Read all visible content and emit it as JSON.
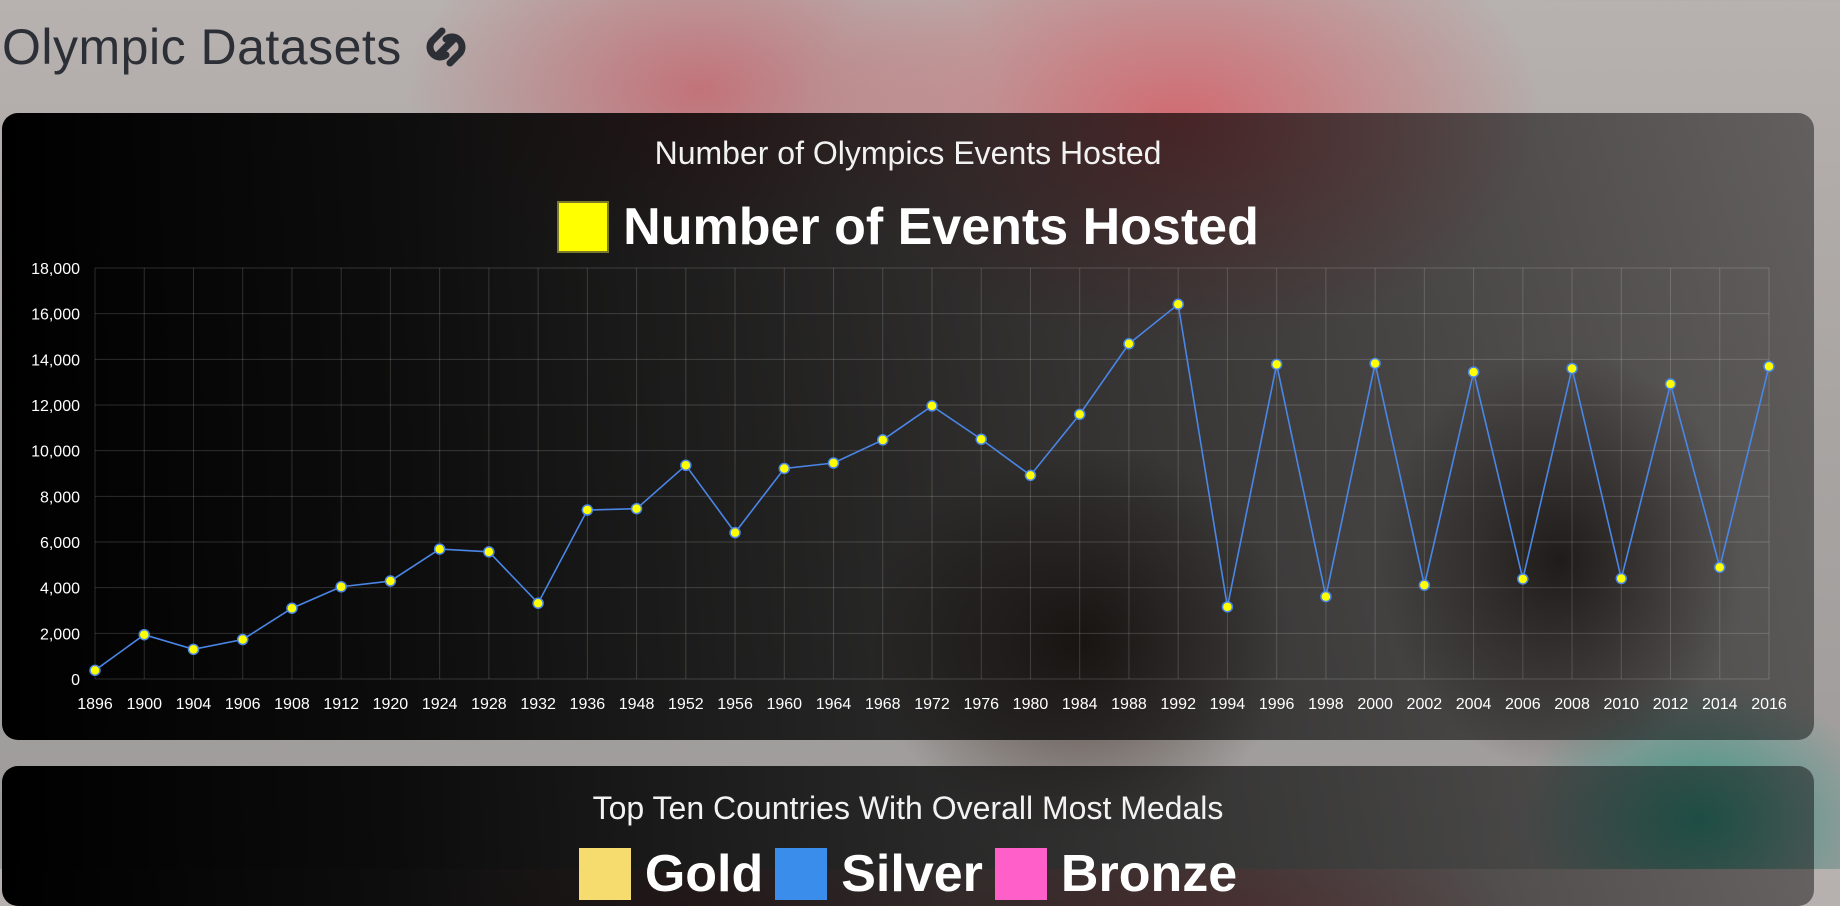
{
  "page": {
    "title": "Olympic Datasets",
    "logo_icon": "link-icon"
  },
  "colors": {
    "line": "#4a86e8",
    "point_fill": "#ffff00",
    "legend_swatch": "#ffff00",
    "gold": "#f6dc6f",
    "silver": "#3a8dea",
    "bronze": "#ff5fc8"
  },
  "chart_data": [
    {
      "type": "line",
      "title": "Number of Olympics Events Hosted",
      "legend_position": "top",
      "grid": true,
      "ylim": [
        0,
        18000
      ],
      "y_ticks": [
        "0",
        "2,000",
        "4,000",
        "6,000",
        "8,000",
        "10,000",
        "12,000",
        "14,000",
        "16,000",
        "18,000"
      ],
      "categories": [
        "1896",
        "1900",
        "1904",
        "1906",
        "1908",
        "1912",
        "1920",
        "1924",
        "1928",
        "1932",
        "1936",
        "1948",
        "1952",
        "1956",
        "1960",
        "1964",
        "1968",
        "1972",
        "1976",
        "1980",
        "1984",
        "1988",
        "1992",
        "1994",
        "1996",
        "1998",
        "2000",
        "2002",
        "2004",
        "2006",
        "2008",
        "2010",
        "2012",
        "2014",
        "2016"
      ],
      "series": [
        {
          "name": "Number of Events Hosted",
          "values": [
            380,
            1940,
            1300,
            1730,
            3100,
            4040,
            4290,
            5690,
            5570,
            3320,
            7400,
            7460,
            9360,
            6410,
            9220,
            9460,
            10470,
            11960,
            10500,
            8920,
            11590,
            14680,
            16410,
            3160,
            13780,
            3610,
            13820,
            4110,
            13440,
            4380,
            13600,
            4400,
            12920,
            4890,
            13690
          ]
        }
      ]
    },
    {
      "type": "bar",
      "title": "Top Ten Countries With Overall Most Medals",
      "legend_position": "top",
      "series": [
        {
          "name": "Gold",
          "values": []
        },
        {
          "name": "Silver",
          "values": []
        },
        {
          "name": "Bronze",
          "values": []
        }
      ]
    }
  ]
}
